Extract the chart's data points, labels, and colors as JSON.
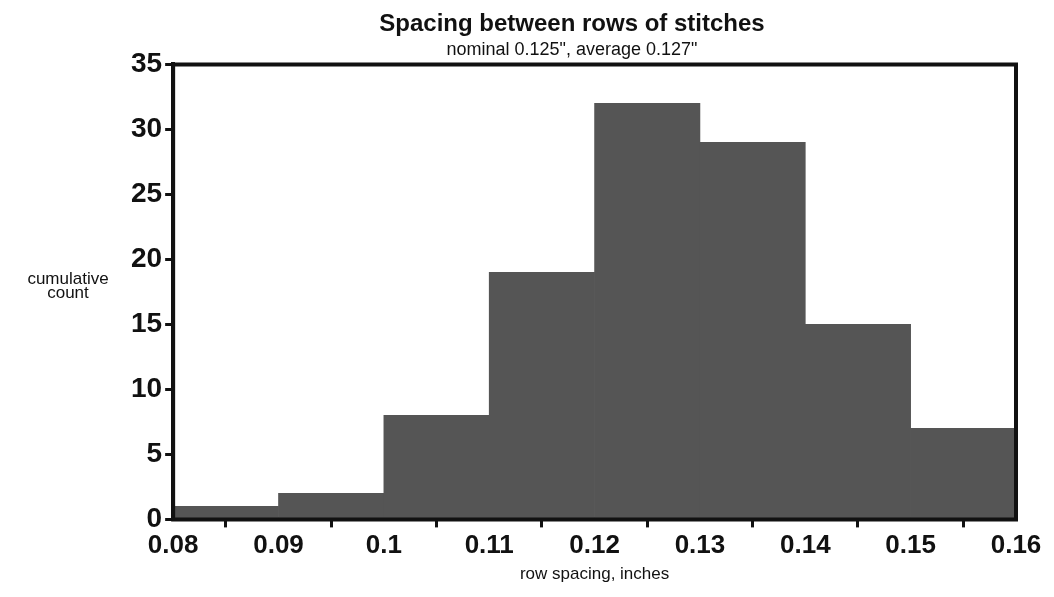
{
  "chart_data": {
    "type": "histogram",
    "title": "Spacing between rows of stitches",
    "subtitle": "nominal 0.125\", average 0.127\"",
    "xlabel": "row spacing, inches",
    "ylabel": "cumulative count",
    "bins": [
      0.08,
      0.09,
      0.1,
      0.11,
      0.12,
      0.13,
      0.14,
      0.15,
      0.16
    ],
    "values": [
      1,
      2,
      8,
      19,
      32,
      29,
      15,
      7
    ],
    "color": "#555555",
    "xlim": [
      0.08,
      0.16
    ],
    "xticks": [
      0.08,
      0.09,
      0.1,
      0.11,
      0.12,
      0.13,
      0.14,
      0.15,
      0.16
    ],
    "ylim": [
      0,
      35
    ],
    "yticks": [
      0,
      5,
      10,
      15,
      20,
      25,
      30,
      35
    ],
    "grid": false,
    "legend": false
  }
}
